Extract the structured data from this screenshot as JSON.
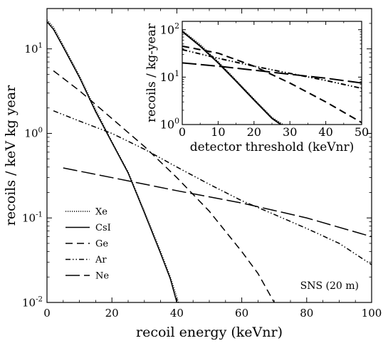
{
  "chart_data": [
    {
      "type": "line",
      "title": "",
      "annotation": "SNS (20 m)",
      "xlabel": "recoil energy (keVnr)",
      "ylabel": "recoils / keV kg year",
      "xlim": [
        0,
        100
      ],
      "ylim": [
        0.01,
        30
      ],
      "yscale": "log",
      "grid": false,
      "legend_position": "bottom-left",
      "x_ticks": [
        0,
        20,
        40,
        60,
        80,
        100
      ],
      "x_tick_labels": [
        "0",
        "20",
        "40",
        "60",
        "80",
        "100"
      ],
      "y_ticks": [
        0.01,
        0.1,
        1,
        10
      ],
      "y_tick_labels": [
        {
          "base": "10",
          "exp": "-2"
        },
        {
          "base": "10",
          "exp": "-1"
        },
        {
          "base": "10",
          "exp": "0"
        },
        {
          "base": "10",
          "exp": "1"
        }
      ],
      "series": [
        {
          "name": "Xe",
          "dash": "dotted",
          "x": [
            0,
            2,
            5,
            10,
            15,
            20,
            25,
            30,
            35,
            38,
            40.5
          ],
          "y": [
            22,
            18,
            11,
            4.8,
            1.9,
            0.8,
            0.35,
            0.12,
            0.04,
            0.02,
            0.01
          ]
        },
        {
          "name": "CsI",
          "dash": "solid",
          "x": [
            0,
            2,
            5,
            10,
            15,
            20,
            25,
            30,
            35,
            38,
            40
          ],
          "y": [
            21,
            17,
            10.5,
            4.6,
            1.8,
            0.78,
            0.34,
            0.115,
            0.038,
            0.019,
            0.01
          ]
        },
        {
          "name": "Ge",
          "dash": "dashed",
          "x": [
            2,
            10,
            20,
            30,
            40,
            50,
            60,
            65,
            70
          ],
          "y": [
            5.5,
            3.2,
            1.5,
            0.7,
            0.3,
            0.12,
            0.04,
            0.022,
            0.01
          ]
        },
        {
          "name": "Ar",
          "dash": "dashdotdot",
          "x": [
            2,
            10,
            20,
            30,
            40,
            50,
            60,
            70,
            80,
            90,
            100
          ],
          "y": [
            1.85,
            1.4,
            1.0,
            0.65,
            0.4,
            0.25,
            0.16,
            0.11,
            0.075,
            0.05,
            0.028
          ]
        },
        {
          "name": "Ne",
          "dash": "longdash",
          "x": [
            5,
            20,
            40,
            60,
            80,
            100
          ],
          "y": [
            0.39,
            0.3,
            0.21,
            0.15,
            0.1,
            0.06
          ]
        }
      ]
    },
    {
      "type": "line",
      "title": "",
      "xlabel": "detector threshold (keVnr)",
      "ylabel": "recoils / kg-year",
      "xlim": [
        0,
        50
      ],
      "ylim": [
        1,
        150
      ],
      "yscale": "log",
      "grid": false,
      "x_ticks": [
        0,
        10,
        20,
        30,
        40,
        50
      ],
      "x_tick_labels": [
        "0",
        "10",
        "20",
        "30",
        "40",
        "50"
      ],
      "y_ticks": [
        1,
        10,
        100
      ],
      "y_tick_labels": [
        {
          "base": "10",
          "exp": "0"
        },
        {
          "base": "10",
          "exp": "1"
        },
        {
          "base": "10",
          "exp": "2"
        }
      ],
      "series": [
        {
          "name": "Xe",
          "dash": "dotted",
          "x": [
            0,
            5,
            10,
            15,
            20,
            25,
            28
          ],
          "y": [
            95,
            48,
            21,
            8.5,
            3.4,
            1.4,
            1.0
          ]
        },
        {
          "name": "CsI",
          "dash": "solid",
          "x": [
            0,
            5,
            10,
            15,
            20,
            25,
            27.5
          ],
          "y": [
            92,
            45,
            20,
            8.2,
            3.3,
            1.35,
            1.0
          ]
        },
        {
          "name": "Ge",
          "dash": "dashed",
          "x": [
            0,
            10,
            20,
            30,
            40,
            50
          ],
          "y": [
            45,
            32,
            17,
            7.5,
            3.0,
            1.1
          ]
        },
        {
          "name": "Ar",
          "dash": "dashdotdot",
          "x": [
            0,
            10,
            20,
            30,
            40,
            50
          ],
          "y": [
            38,
            25,
            17,
            12,
            8.5,
            5.8
          ]
        },
        {
          "name": "Ne",
          "dash": "longdash",
          "x": [
            0,
            10,
            20,
            30,
            40,
            50
          ],
          "y": [
            20,
            17,
            14,
            11.5,
            9.5,
            7.5
          ]
        }
      ]
    }
  ]
}
